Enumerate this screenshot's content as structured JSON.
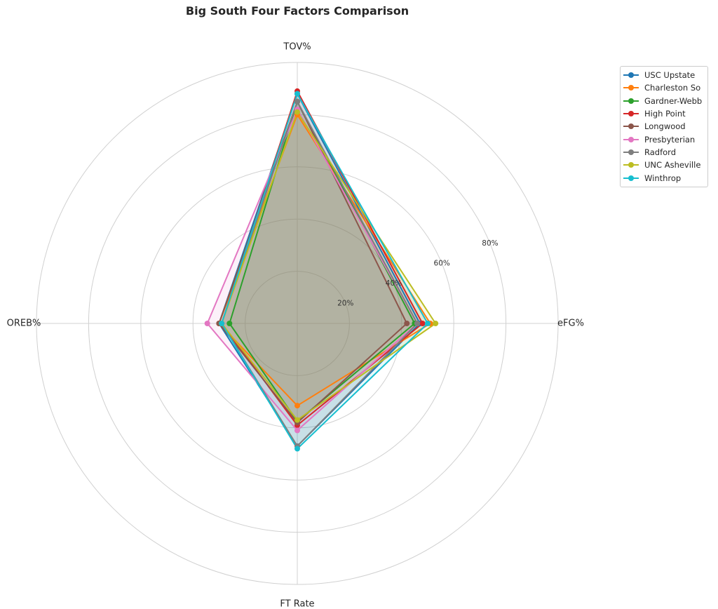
{
  "chart_data": {
    "type": "radar",
    "title": "Big South Four Factors Comparison",
    "axes": [
      "eFG%",
      "TOV%",
      "OREB%",
      "FT Rate"
    ],
    "radial_ticks": [
      "20%",
      "40%",
      "60%",
      "80%"
    ],
    "radial_tick_values": [
      20,
      40,
      60,
      80
    ],
    "rmax": 100,
    "grid": true,
    "legend_position": "top-right",
    "series": [
      {
        "name": "USC Upstate",
        "color": "#1f77b4",
        "values": [
          47.0,
          88.0,
          30.0,
          47.0
        ]
      },
      {
        "name": "Charleston So",
        "color": "#ff7f0e",
        "values": [
          51.0,
          80.0,
          30.0,
          31.5
        ]
      },
      {
        "name": "Gardner-Webb",
        "color": "#2ca02c",
        "values": [
          45.0,
          85.0,
          26.0,
          37.5
        ]
      },
      {
        "name": "High Point",
        "color": "#d62728",
        "values": [
          48.0,
          89.0,
          29.0,
          39.0
        ]
      },
      {
        "name": "Longwood",
        "color": "#8c564b",
        "values": [
          42.0,
          85.0,
          30.0,
          38.0
        ]
      },
      {
        "name": "Presbyterian",
        "color": "#e377c2",
        "values": [
          46.0,
          82.0,
          34.5,
          41.0
        ]
      },
      {
        "name": "Radford",
        "color": "#7f7f7f",
        "values": [
          46.0,
          85.0,
          29.0,
          47.0
        ]
      },
      {
        "name": "UNC Asheville",
        "color": "#bcbd22",
        "values": [
          53.0,
          81.0,
          29.0,
          37.0
        ]
      },
      {
        "name": "Winthrop",
        "color": "#17becf",
        "values": [
          50.0,
          88.0,
          29.0,
          48.0
        ]
      }
    ]
  }
}
